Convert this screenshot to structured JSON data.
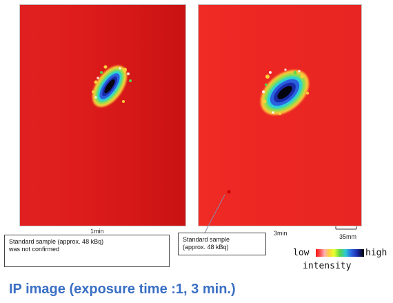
{
  "panels": {
    "left": {
      "label": "1min"
    },
    "right": {
      "label": "3min"
    }
  },
  "notes": {
    "left": {
      "line1": "Standard sample (approx. 48 kBq)",
      "line2": "was not  confirmed"
    },
    "right": {
      "line1": "Standard sample",
      "line2": "(approx. 48 kBq)"
    }
  },
  "scale": {
    "label": "35mm"
  },
  "legend": {
    "low": "low",
    "high": "high",
    "intensity": "intensity"
  },
  "caption": "IP image (exposure time :1, 3 min.)",
  "colors": {
    "background_red": "#e02020",
    "caption_blue": "#3a6fc4"
  }
}
